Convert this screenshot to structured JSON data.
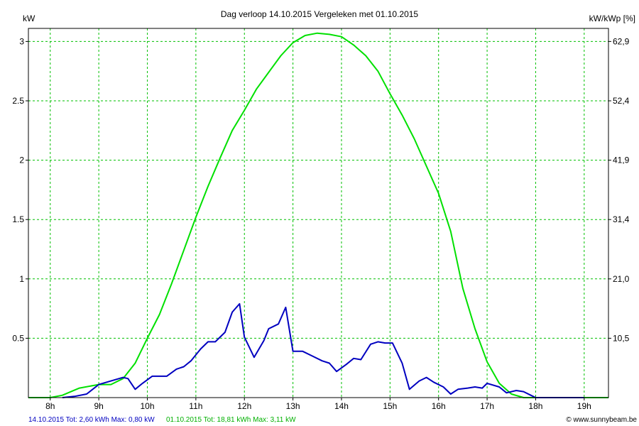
{
  "chart_data": {
    "type": "line",
    "title": "Dag  verloop 14.10.2015   Vergeleken met 01.10.2015",
    "ylabel_left": "kW",
    "ylabel_right": "kW/kWp [%]",
    "x_ticks": [
      "8h",
      "9h",
      "10h",
      "11h",
      "12h",
      "13h",
      "14h",
      "15h",
      "16h",
      "17h",
      "18h",
      "19h"
    ],
    "x_range": [
      7.55,
      19.5
    ],
    "y_range": [
      0,
      3.11
    ],
    "y_ticks_left": [
      "0.5",
      "1",
      "1.5",
      "2",
      "2.5",
      "3"
    ],
    "y_ticks_left_values": [
      0.5,
      1,
      1.5,
      2,
      2.5,
      3
    ],
    "y_ticks_right": [
      "10,5",
      "21,0",
      "31,4",
      "41,9",
      "52,4",
      "62,9"
    ],
    "grid": true,
    "colors": {
      "series_1": "#0000c0",
      "series_2": "#00e000",
      "grid": "#00c000"
    },
    "series": [
      {
        "name": "14.10.2015",
        "color": "#0000c0",
        "x": [
          8.25,
          8.5,
          8.75,
          9.0,
          9.25,
          9.5,
          9.6,
          9.75,
          9.9,
          10.1,
          10.25,
          10.4,
          10.6,
          10.75,
          10.9,
          11.1,
          11.25,
          11.4,
          11.6,
          11.75,
          11.9,
          12.0,
          12.2,
          12.4,
          12.5,
          12.7,
          12.85,
          13.0,
          13.2,
          13.4,
          13.6,
          13.75,
          13.9,
          14.1,
          14.25,
          14.4,
          14.6,
          14.75,
          14.9,
          15.05,
          15.25,
          15.4,
          15.6,
          15.75,
          15.9,
          16.1,
          16.25,
          16.4,
          16.6,
          16.75,
          16.9,
          17.0,
          17.25,
          17.4,
          17.6,
          17.75,
          17.9,
          18.0,
          18.25,
          18.5,
          18.75,
          19.0
        ],
        "y": [
          0.0,
          0.01,
          0.03,
          0.11,
          0.14,
          0.17,
          0.16,
          0.07,
          0.12,
          0.18,
          0.18,
          0.18,
          0.24,
          0.26,
          0.31,
          0.41,
          0.47,
          0.47,
          0.55,
          0.72,
          0.79,
          0.51,
          0.34,
          0.48,
          0.58,
          0.62,
          0.76,
          0.39,
          0.39,
          0.35,
          0.31,
          0.29,
          0.22,
          0.28,
          0.33,
          0.32,
          0.45,
          0.47,
          0.46,
          0.46,
          0.29,
          0.07,
          0.14,
          0.17,
          0.13,
          0.09,
          0.03,
          0.07,
          0.08,
          0.09,
          0.08,
          0.12,
          0.09,
          0.04,
          0.06,
          0.05,
          0.02,
          0.0,
          0.0,
          0.0,
          0.0,
          0.0
        ]
      },
      {
        "name": "01.10.2015",
        "color": "#00e000",
        "x": [
          7.55,
          8.0,
          8.25,
          8.6,
          9.0,
          9.25,
          9.5,
          9.75,
          10.0,
          10.25,
          10.5,
          10.75,
          11.0,
          11.25,
          11.5,
          11.75,
          12.0,
          12.25,
          12.5,
          12.75,
          13.0,
          13.25,
          13.5,
          13.75,
          14.0,
          14.25,
          14.5,
          14.75,
          15.0,
          15.25,
          15.5,
          15.75,
          16.0,
          16.25,
          16.5,
          16.75,
          17.0,
          17.25,
          17.5,
          17.75,
          18.0,
          18.25,
          18.5,
          18.75,
          19.0,
          19.25,
          19.5
        ],
        "y": [
          0.0,
          0.0,
          0.02,
          0.08,
          0.11,
          0.11,
          0.16,
          0.29,
          0.5,
          0.7,
          0.96,
          1.24,
          1.52,
          1.78,
          2.02,
          2.25,
          2.42,
          2.6,
          2.74,
          2.88,
          2.99,
          3.05,
          3.07,
          3.06,
          3.04,
          2.97,
          2.88,
          2.75,
          2.56,
          2.38,
          2.18,
          1.95,
          1.72,
          1.4,
          0.92,
          0.58,
          0.3,
          0.12,
          0.03,
          0.0,
          0.0,
          0.0,
          0.0,
          0.0,
          0.0,
          0.0,
          0.0
        ]
      }
    ],
    "footer": {
      "series_1_summary": "14.10.2015 Tot: 2,60 kWh Max: 0,80 kW",
      "series_2_summary": "01.10.2015 Tot: 18,81 kWh Max: 3,11 kW",
      "watermark": "© www.sunnybeam.be"
    }
  }
}
